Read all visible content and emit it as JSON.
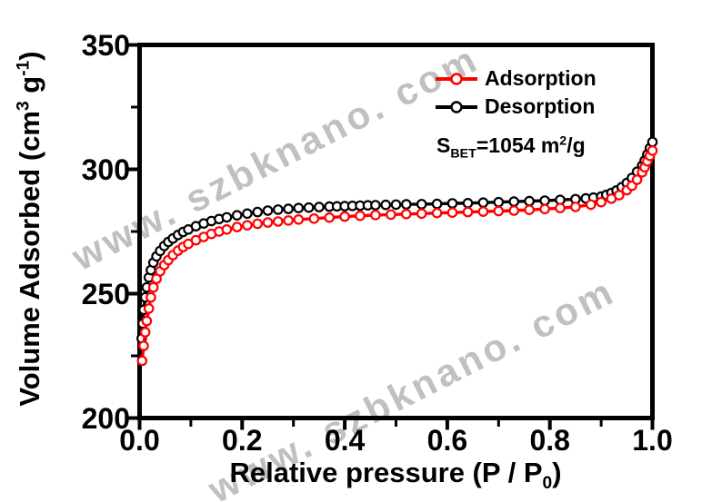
{
  "watermark": {
    "text": "www. szbknano. com",
    "color": "#c0c0c0"
  },
  "axes": {
    "xlabel_parts": {
      "pre": "Relative pressure (P / P",
      "sub": "0",
      "post": ")"
    },
    "ylabel_parts": {
      "pre": "Volume Adsorbed (cm",
      "sup1": "3",
      "mid": " g",
      "sup2": "-1",
      "post": ")"
    }
  },
  "annotation": {
    "s": "S",
    "sub": "BET",
    "mid": "=1054 m",
    "sup": "2",
    "end": "/g"
  },
  "chart_data": {
    "type": "line",
    "title": "",
    "xlabel": "Relative pressure (P / P₀)",
    "ylabel": "Volume Adsorbed (cm³ g⁻¹)",
    "annotation_text": "S_BET = 1054 m²/g",
    "grid": false,
    "legend_position": "upper-right-inside",
    "xlim": [
      0.0,
      1.0
    ],
    "ylim": [
      200,
      350
    ],
    "x_major_ticks": [
      0.0,
      0.2,
      0.4,
      0.6,
      0.8,
      1.0
    ],
    "x_tick_labels": [
      "0.0",
      "0.2",
      "0.4",
      "0.6",
      "0.8",
      "1.0"
    ],
    "x_minor_ticks": [
      0.1,
      0.3,
      0.5,
      0.7,
      0.9
    ],
    "y_major_ticks": [
      200,
      250,
      300,
      350
    ],
    "y_tick_labels": [
      "200",
      "250",
      "300",
      "350"
    ],
    "y_minor_ticks": [
      225,
      275,
      325
    ],
    "series": [
      {
        "name": "Adsorption",
        "color": "#ff0000",
        "marker": "open-circle",
        "points": [
          [
            0.005,
            223
          ],
          [
            0.008,
            229
          ],
          [
            0.011,
            234.5
          ],
          [
            0.014,
            239
          ],
          [
            0.018,
            244
          ],
          [
            0.022,
            248.5
          ],
          [
            0.027,
            252.5
          ],
          [
            0.033,
            256
          ],
          [
            0.04,
            259
          ],
          [
            0.048,
            261.5
          ],
          [
            0.056,
            263.5
          ],
          [
            0.065,
            265.5
          ],
          [
            0.075,
            267.3
          ],
          [
            0.085,
            268.8
          ],
          [
            0.095,
            270
          ],
          [
            0.11,
            271.5
          ],
          [
            0.125,
            272.8
          ],
          [
            0.14,
            274
          ],
          [
            0.155,
            275
          ],
          [
            0.17,
            275.8
          ],
          [
            0.19,
            276.8
          ],
          [
            0.21,
            277.5
          ],
          [
            0.23,
            278.1
          ],
          [
            0.25,
            278.6
          ],
          [
            0.27,
            279
          ],
          [
            0.29,
            279.4
          ],
          [
            0.31,
            279.8
          ],
          [
            0.34,
            280.2
          ],
          [
            0.37,
            280.6
          ],
          [
            0.4,
            281
          ],
          [
            0.43,
            281.3
          ],
          [
            0.46,
            281.6
          ],
          [
            0.49,
            281.8
          ],
          [
            0.52,
            282
          ],
          [
            0.55,
            282.2
          ],
          [
            0.58,
            282.4
          ],
          [
            0.61,
            282.6
          ],
          [
            0.64,
            282.8
          ],
          [
            0.67,
            283
          ],
          [
            0.7,
            283.2
          ],
          [
            0.73,
            283.4
          ],
          [
            0.76,
            283.7
          ],
          [
            0.79,
            284
          ],
          [
            0.82,
            284.4
          ],
          [
            0.85,
            284.9
          ],
          [
            0.88,
            285.8
          ],
          [
            0.9,
            286.8
          ],
          [
            0.92,
            288.2
          ],
          [
            0.935,
            289.6
          ],
          [
            0.95,
            291.6
          ],
          [
            0.96,
            293.4
          ],
          [
            0.97,
            295.8
          ],
          [
            0.98,
            298.8
          ],
          [
            0.985,
            300.8
          ],
          [
            0.99,
            303.2
          ],
          [
            0.995,
            305.4
          ],
          [
            1.0,
            307.5
          ]
        ]
      },
      {
        "name": "Desorption",
        "color": "#000000",
        "marker": "open-circle",
        "points": [
          [
            0.004,
            232
          ],
          [
            0.006,
            238
          ],
          [
            0.008,
            243.5
          ],
          [
            0.011,
            248.5
          ],
          [
            0.014,
            252.5
          ],
          [
            0.018,
            256.5
          ],
          [
            0.022,
            259.5
          ],
          [
            0.027,
            262.5
          ],
          [
            0.033,
            265
          ],
          [
            0.04,
            267.2
          ],
          [
            0.048,
            269.2
          ],
          [
            0.056,
            270.8
          ],
          [
            0.065,
            272.2
          ],
          [
            0.075,
            273.6
          ],
          [
            0.085,
            274.8
          ],
          [
            0.095,
            275.8
          ],
          [
            0.11,
            277.1
          ],
          [
            0.125,
            278.2
          ],
          [
            0.14,
            279.2
          ],
          [
            0.155,
            280
          ],
          [
            0.17,
            280.7
          ],
          [
            0.19,
            281.5
          ],
          [
            0.21,
            282.2
          ],
          [
            0.23,
            282.8
          ],
          [
            0.25,
            283.4
          ],
          [
            0.27,
            283.8
          ],
          [
            0.29,
            284.1
          ],
          [
            0.31,
            284.4
          ],
          [
            0.33,
            284.6
          ],
          [
            0.35,
            284.8
          ],
          [
            0.37,
            285
          ],
          [
            0.385,
            285.1
          ],
          [
            0.4,
            285.2
          ],
          [
            0.415,
            285.3
          ],
          [
            0.43,
            285.4
          ],
          [
            0.445,
            285.5
          ],
          [
            0.46,
            285.6
          ],
          [
            0.48,
            285.7
          ],
          [
            0.5,
            285.8
          ],
          [
            0.52,
            285.9
          ],
          [
            0.55,
            286
          ],
          [
            0.58,
            286.1
          ],
          [
            0.61,
            286.3
          ],
          [
            0.64,
            286.4
          ],
          [
            0.67,
            286.6
          ],
          [
            0.7,
            286.8
          ],
          [
            0.73,
            287
          ],
          [
            0.76,
            287.2
          ],
          [
            0.79,
            287.4
          ],
          [
            0.82,
            287.7
          ],
          [
            0.85,
            288
          ],
          [
            0.87,
            288.3
          ],
          [
            0.885,
            288.6
          ],
          [
            0.9,
            289
          ],
          [
            0.91,
            289.7
          ],
          [
            0.92,
            290.5
          ],
          [
            0.93,
            291.5
          ],
          [
            0.94,
            292.8
          ],
          [
            0.95,
            294.5
          ],
          [
            0.96,
            296.5
          ],
          [
            0.97,
            299
          ],
          [
            0.98,
            301.5
          ],
          [
            0.985,
            303.5
          ],
          [
            0.99,
            306
          ],
          [
            0.995,
            308.5
          ],
          [
            1.0,
            311
          ]
        ]
      }
    ]
  }
}
